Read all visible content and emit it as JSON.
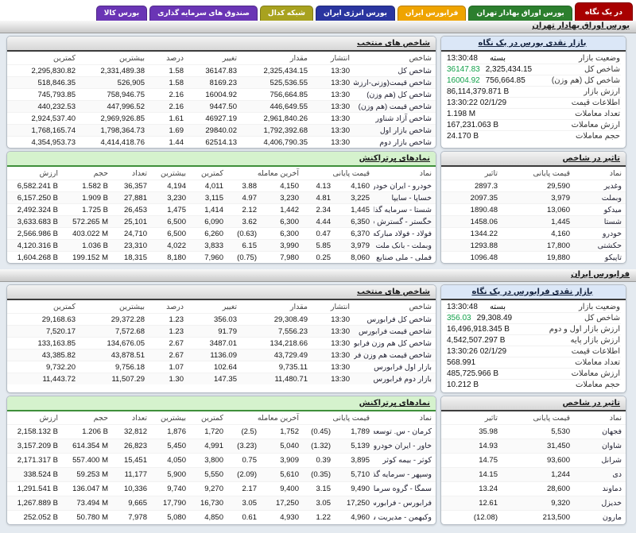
{
  "colors": {
    "positive": "#12a04a",
    "negative": "#e01515",
    "active_tab": "#a80000"
  },
  "tabs": [
    {
      "name": "overview",
      "label": "در یک نگاه",
      "color": "#a80000",
      "active": true
    },
    {
      "name": "tse",
      "label": "بورس اوراق بهادار تهران",
      "color": "#2c7f2e",
      "active": false
    },
    {
      "name": "ifb",
      "label": "فرابورس ایران",
      "color": "#efa400",
      "active": false
    },
    {
      "name": "energy",
      "label": "بورس انرژی ایران",
      "color": "#2a35a0",
      "active": false
    },
    {
      "name": "codal",
      "label": "شبکه کدال",
      "color": "#a8a21f",
      "active": false
    },
    {
      "name": "funds",
      "label": "صندوق های سرمایه گذاری",
      "color": "#6a35b5",
      "active": false
    },
    {
      "name": "commodity",
      "label": "بورس کالا",
      "color": "#6a35b5",
      "active": false
    }
  ],
  "sections": [
    {
      "strip_title": "بورس اوراق بهادار تهران",
      "glance": {
        "title": "بازار نقدی بورس در یک نگاه",
        "rows": [
          {
            "label": "وضعیت بازار",
            "status": "بسته",
            "value": "13:30:48"
          },
          {
            "label": "شاخص کل",
            "value": "2,325,434.15",
            "change": "36147.83"
          },
          {
            "label": "شاخص کل (هم وزن)",
            "value": "756,664.85",
            "change": "16004.92"
          },
          {
            "label": "ارزش بازار",
            "value": "86,114,379.871 B"
          },
          {
            "label": "اطلاعات قیمت",
            "value": "13:30:22 02/1/29"
          },
          {
            "label": "تعداد معاملات",
            "value": "1.198 M"
          },
          {
            "label": "ارزش معاملات",
            "value": "167,231.063 B"
          },
          {
            "label": "حجم معاملات",
            "value": "24.170 B"
          }
        ]
      },
      "indices": {
        "title": "شاخص های منتخب",
        "headers": [
          "شاخص",
          "انتشار",
          "مقدار",
          "تغییر",
          "درصد",
          "بیشترین",
          "کمترین"
        ],
        "chg_cols": [
          3,
          4
        ],
        "rows": [
          [
            "شاخص کل",
            "13:30",
            "2,325,434.15",
            "36147.83",
            "1.58",
            "2,331,489.38",
            "2,295,830.82"
          ],
          [
            "شاخص قیمت(وزنی-ارزشی)",
            "13:30",
            "525,536.55",
            "8169.23",
            "1.58",
            "526,905",
            "518,846.35"
          ],
          [
            "شاخص کل (هم وزن)",
            "13:30",
            "756,664.85",
            "16004.92",
            "2.16",
            "758,946.75",
            "745,793.85"
          ],
          [
            "شاخص قیمت (هم وزن)",
            "13:30",
            "446,649.55",
            "9447.50",
            "2.16",
            "447,996.52",
            "440,232.53"
          ],
          [
            "شاخص آزاد شناور",
            "13:30",
            "2,961,840.26",
            "46927.19",
            "1.61",
            "2,969,926.85",
            "2,924,537.40"
          ],
          [
            "شاخص بازار اول",
            "13:30",
            "1,792,392.68",
            "29840.02",
            "1.69",
            "1,798,364.73",
            "1,768,165.74"
          ],
          [
            "شاخص بازار دوم",
            "13:30",
            "4,406,790.35",
            "62514.13",
            "1.44",
            "4,414,418.76",
            "4,354,953.73"
          ]
        ]
      },
      "actives": {
        "title": "نمادهای پرتراکنش",
        "headers": [
          "نماد",
          "قیمت پایانی",
          "",
          "آخرین معامله",
          "",
          "کمترین",
          "بیشترین",
          "تعداد",
          "حجم",
          "ارزش"
        ],
        "chg_cols": [
          2,
          4
        ],
        "rows": [
          [
            "خودرو - ایران خودرو",
            "4,160",
            "4.13",
            "4,150",
            "3.88",
            "4,011",
            "4,194",
            "36,357",
            "1.582 B",
            "6,582.241 B"
          ],
          [
            "خساپا - سایپا",
            "3,225",
            "4.81",
            "3,230",
            "4.97",
            "3,115",
            "3,230",
            "27,881",
            "1.909 B",
            "6,157.250 B"
          ],
          [
            "شستا - سرمایه گذاری تامین اجتماعی",
            "1,445",
            "2.34",
            "1,442",
            "2.12",
            "1,414",
            "1,475",
            "26,453",
            "1.725 B",
            "2,492.324 B"
          ],
          [
            "خگستر - گسترش سرمایه گذاری ایران خودرو",
            "6,350",
            "4.44",
            "6,300",
            "3.62",
            "6,090",
            "6,500",
            "25,101",
            "572.265 M",
            "3,633.683 B"
          ],
          [
            "فولاد - فولاد مبارکه اصفهان",
            "6,370",
            "0.47",
            "6,300",
            "(0.63)",
            "6,260",
            "6,500",
            "24,710",
            "403.022 M",
            "2,566.986 B"
          ],
          [
            "وبملت - بانک ملت",
            "3,979",
            "5.85",
            "3,990",
            "6.15",
            "3,833",
            "4,022",
            "23,310",
            "1.036 B",
            "4,120.316 B"
          ],
          [
            "فملی - ملی صنایع مس ایران",
            "8,060",
            "0.25",
            "7,980",
            "(0.75)",
            "7,960",
            "8,180",
            "18,315",
            "199.152 M",
            "1,604.268 B"
          ]
        ]
      },
      "impact": {
        "title": "تاثیر در شاخص",
        "headers": [
          "نماد",
          "قیمت پایانی",
          "تاثیر"
        ],
        "chg_cols": [
          2
        ],
        "rows": [
          [
            "وغدیر",
            "29,590",
            "2897.3"
          ],
          [
            "وبملت",
            "3,979",
            "2097.35"
          ],
          [
            "میدکو",
            "13,060",
            "1890.48"
          ],
          [
            "شستا",
            "1,445",
            "1458.06"
          ],
          [
            "خودرو",
            "4,160",
            "1344.22"
          ],
          [
            "حکشتی",
            "17,800",
            "1293.88"
          ],
          [
            "تاپیکو",
            "19,880",
            "1096.48"
          ]
        ]
      }
    },
    {
      "strip_title": "فرابورس ایران",
      "glance": {
        "title": "بازار نقدی فرابورس در یک نگاه",
        "rows": [
          {
            "label": "وضعیت بازار",
            "status": "بسته",
            "value": "13:30:48"
          },
          {
            "label": "شاخص کل",
            "value": "29,308.49",
            "change": "356.03"
          },
          {
            "label": "ارزش بازار اول و دوم",
            "value": "16,496,918.345 B"
          },
          {
            "label": "ارزش بازار پایه",
            "value": "4,542,507.297 B"
          },
          {
            "label": "اطلاعات قیمت",
            "value": "13:30:26 02/1/29"
          },
          {
            "label": "تعداد معاملات",
            "value": "568.991"
          },
          {
            "label": "ارزش معاملات",
            "value": "485,725.966 B"
          },
          {
            "label": "حجم معاملات",
            "value": "10.212 B"
          }
        ]
      },
      "indices": {
        "title": "شاخص های منتخب",
        "headers": [
          "شاخص",
          "انتشار",
          "مقدار",
          "تغییر",
          "درصد",
          "بیشترین",
          "کمترین"
        ],
        "chg_cols": [
          3,
          4
        ],
        "rows": [
          [
            "شاخص کل فرابورس",
            "13:30",
            "29,308.49",
            "356.03",
            "1.23",
            "29,372.28",
            "29,168.63"
          ],
          [
            "شاخص قیمت فرابورس",
            "13:30",
            "7,556.23",
            "91.79",
            "1.23",
            "7,572.68",
            "7,520.17"
          ],
          [
            "شاخص کل هم وزن فرابورس",
            "13:30",
            "134,218.66",
            "3487.01",
            "2.67",
            "134,676.05",
            "133,163.85"
          ],
          [
            "شاخص قیمت هم وزن فرابورس",
            "13:30",
            "43,729.49",
            "1136.09",
            "2.67",
            "43,878.51",
            "43,385.82"
          ],
          [
            "بازار اول فرابورس",
            "13:30",
            "9,735.11",
            "102.64",
            "1.07",
            "9,756.18",
            "9,732.20"
          ],
          [
            "بازار دوم فرابورس",
            "13:30",
            "11,480.71",
            "147.35",
            "1.30",
            "11,507.29",
            "11,443.72"
          ]
        ]
      },
      "actives": {
        "title": "نمادهای پرتراکنش",
        "headers": [
          "نماد",
          "قیمت پایانی",
          "",
          "آخرین معامله",
          "",
          "کمترین",
          "بیشترین",
          "تعداد",
          "حجم",
          "ارزش"
        ],
        "chg_cols": [
          2,
          4
        ],
        "rows": [
          [
            "کرمان - س. توسعه و عمران استان کرمان",
            "1,789",
            "(0.45)",
            "1,752",
            "(2.5)",
            "1,720",
            "1,876",
            "32,812",
            "1.206 B",
            "2,158.132 B"
          ],
          [
            "خاور - ایران خودرو دیزل",
            "5,139",
            "(1.32)",
            "5,040",
            "(3.23)",
            "4,991",
            "5,450",
            "26,823",
            "614.354 M",
            "3,157.209 B"
          ],
          [
            "کوثر - بیمه کوثر",
            "3,895",
            "0.39",
            "3,909",
            "0.75",
            "3,800",
            "4,050",
            "15,451",
            "557.400 M",
            "2,171.317 B"
          ],
          [
            "وسپهر - سرمایه گذاری مالی سپهرصادرات",
            "5,710",
            "(0.35)",
            "5,610",
            "(2.09)",
            "5,550",
            "5,900",
            "11,177",
            "59.253 M",
            "338.524 B"
          ],
          [
            "سمگا - گروه سرمایه گذاری میرات فرهنگی",
            "9,490",
            "3.15",
            "9,400",
            "2.17",
            "9,270",
            "9,740",
            "10,336",
            "136.047 M",
            "1,291.541 B"
          ],
          [
            "فرابورس - فرابورس ایران",
            "17,250",
            "3.05",
            "17,250",
            "3.05",
            "16,730",
            "17,790",
            "9,665",
            "73.494 M",
            "1,267.889 B"
          ],
          [
            "وکبهمن - مدیریت سرمایه گذاری کوثربهمن",
            "4,960",
            "1.22",
            "4,930",
            "0.61",
            "4,850",
            "5,080",
            "7,978",
            "50.780 M",
            "252.052 B"
          ]
        ]
      },
      "impact": {
        "title": "تاثیر در شاخص",
        "headers": [
          "نماد",
          "قیمت پایانی",
          "تاثیر"
        ],
        "chg_cols": [
          2
        ],
        "rows": [
          [
            "فجهان",
            "5,530",
            "35.98"
          ],
          [
            "شاوان",
            "31,450",
            "14.93"
          ],
          [
            "شرانل",
            "93,600",
            "14.75"
          ],
          [
            "دی",
            "1,244",
            "14.15"
          ],
          [
            "دماوند",
            "28,600",
            "13.24"
          ],
          [
            "خدیزل",
            "9,320",
            "12.61"
          ],
          [
            "مارون",
            "213,500",
            "(12.08)"
          ]
        ]
      }
    }
  ]
}
